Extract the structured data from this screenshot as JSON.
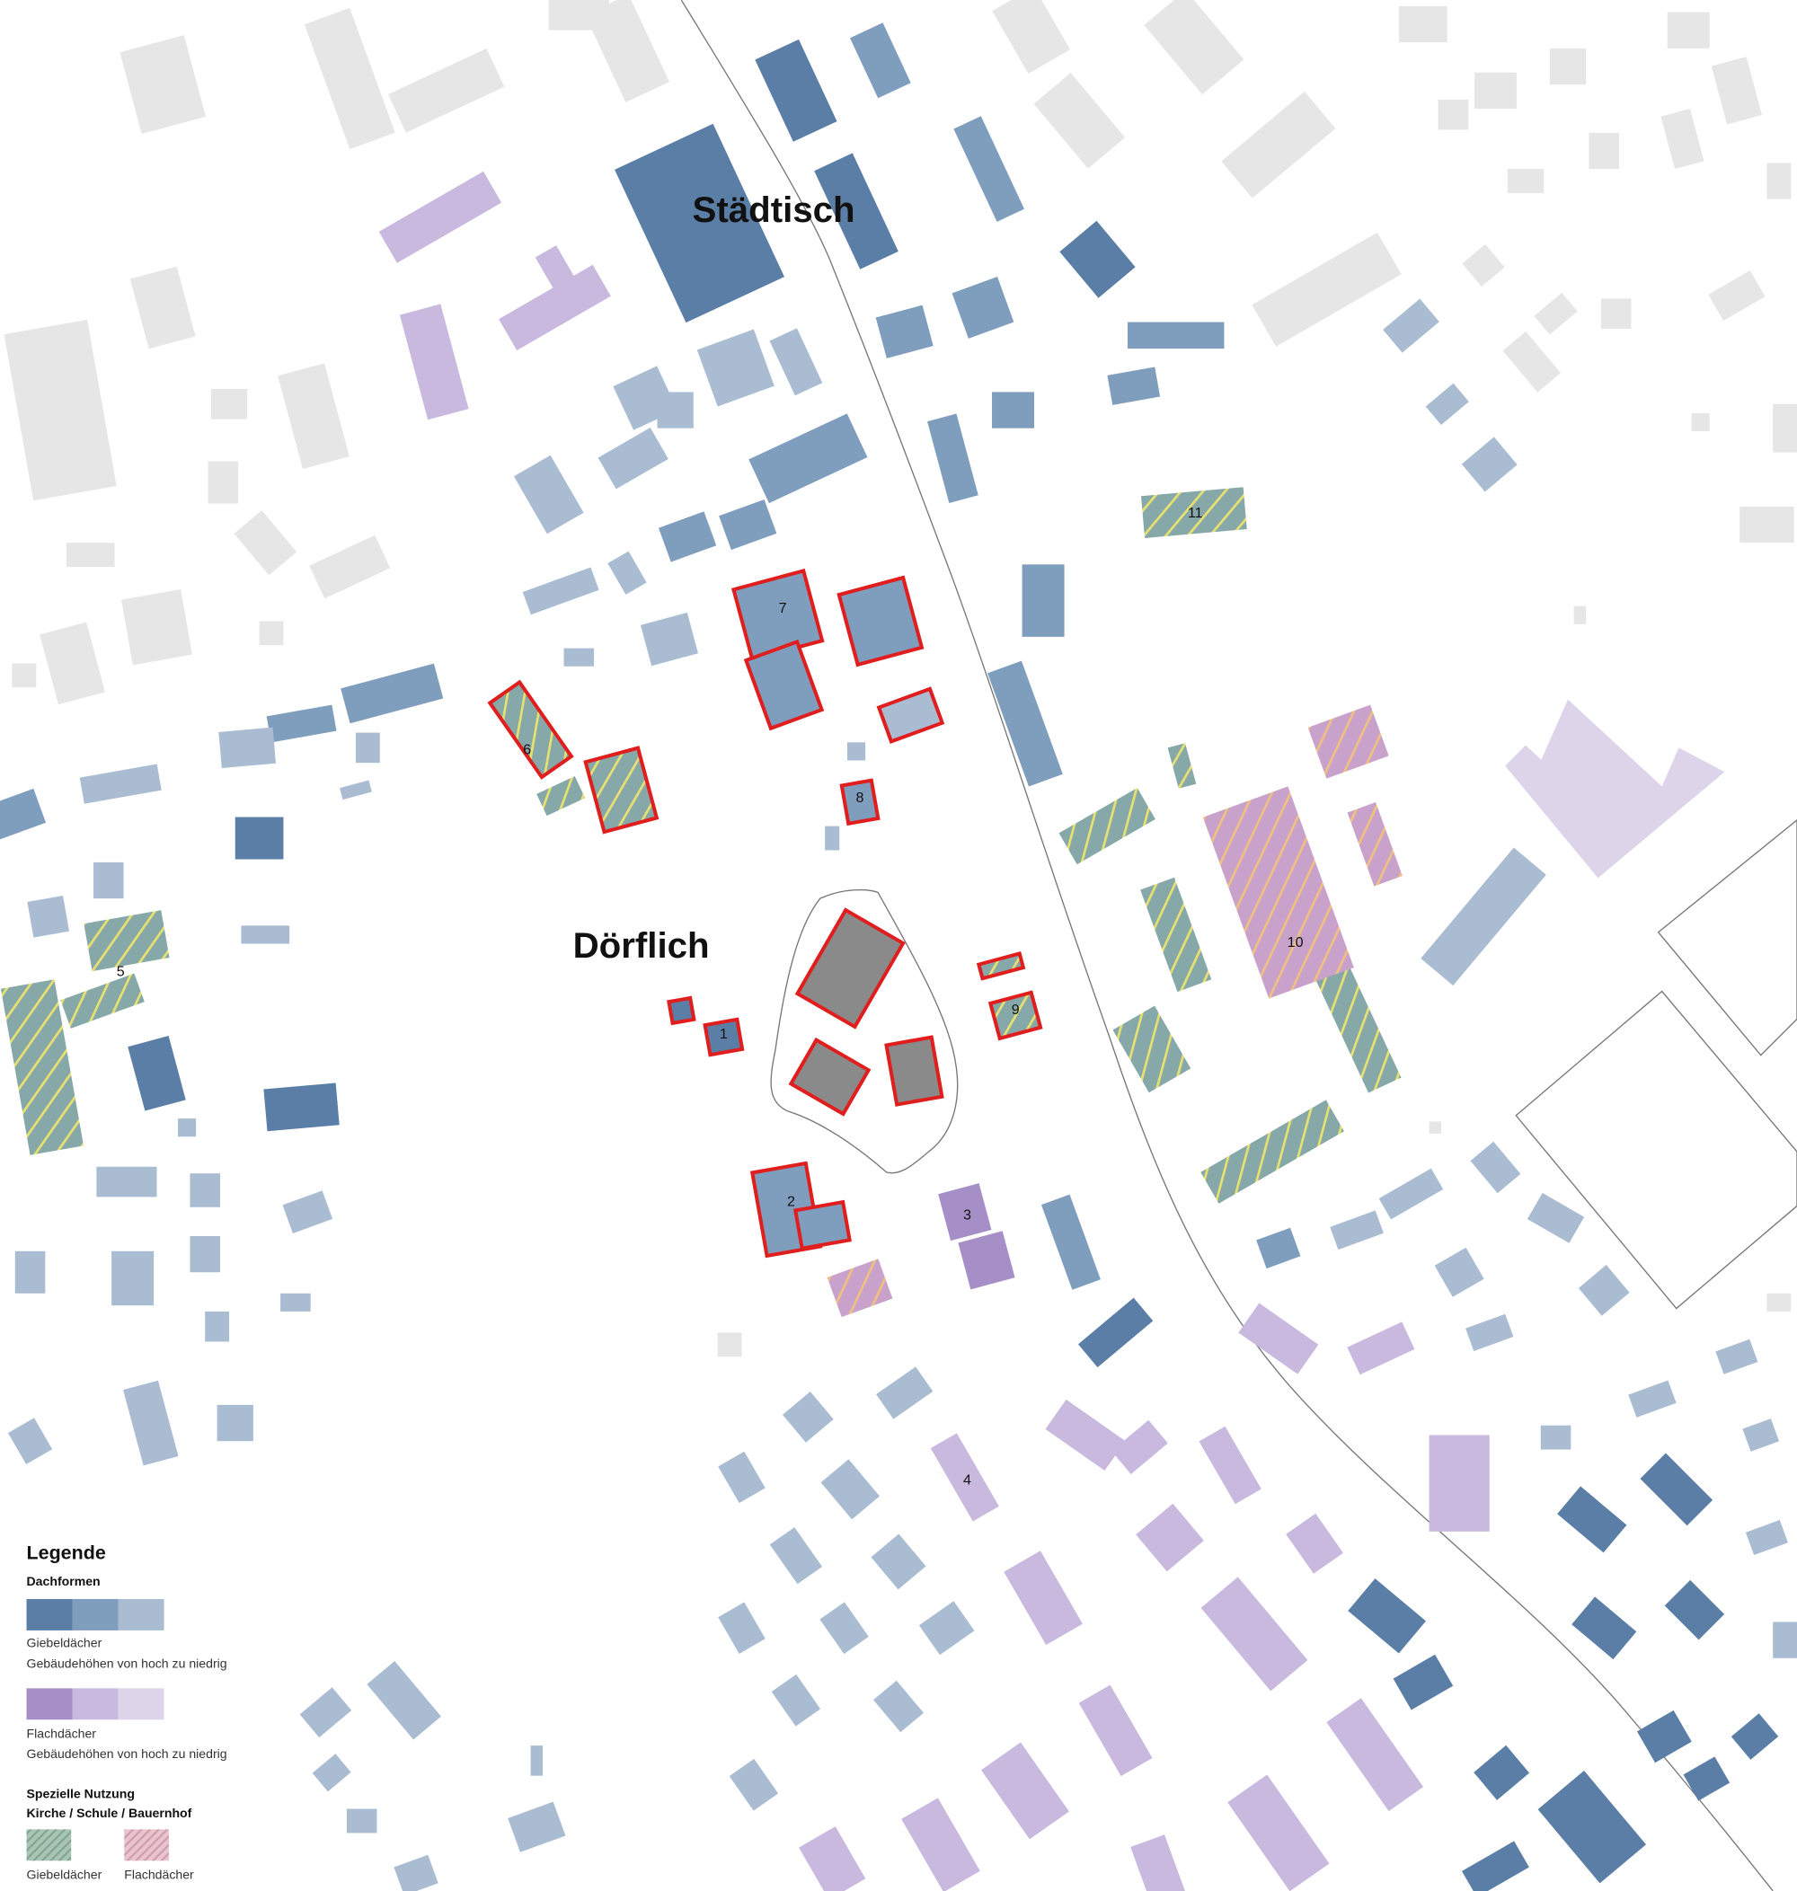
{
  "map": {
    "districts": {
      "urban": "Städtisch",
      "village": "Dörflich"
    },
    "building_numbers": [
      "1",
      "2",
      "3",
      "4",
      "5",
      "6",
      "7",
      "8",
      "9",
      "10",
      "11"
    ],
    "colors": {
      "gable_high": "#5b7ea6",
      "gable_mid": "#7f9dbd",
      "gable_low": "#aabcd2",
      "flat_high": "#a58fc6",
      "flat_mid": "#c9b9df",
      "flat_low": "#ddd4ea",
      "context": "#e6e6e6",
      "church": "#8a8a8a",
      "highlight_outline": "#e01e1e",
      "special_gable": "#86a8a8",
      "special_flat": "#c9a2cc",
      "hatch_line": "#e8e070"
    }
  },
  "legend": {
    "title": "Legende",
    "section_roofs": "Dachformen",
    "gable_label": "Giebeldächer",
    "gable_desc": "Gebäudehöhen von hoch zu niedrig",
    "flat_label": "Flachdächer",
    "flat_desc": "Gebäudehöhen von hoch zu niedrig",
    "special_title": "Spezielle Nutzung",
    "special_sub": "Kirche / Schule / Bauernhof",
    "special_gable_label": "Giebeldächer",
    "special_flat_label": "Flachdächer"
  }
}
